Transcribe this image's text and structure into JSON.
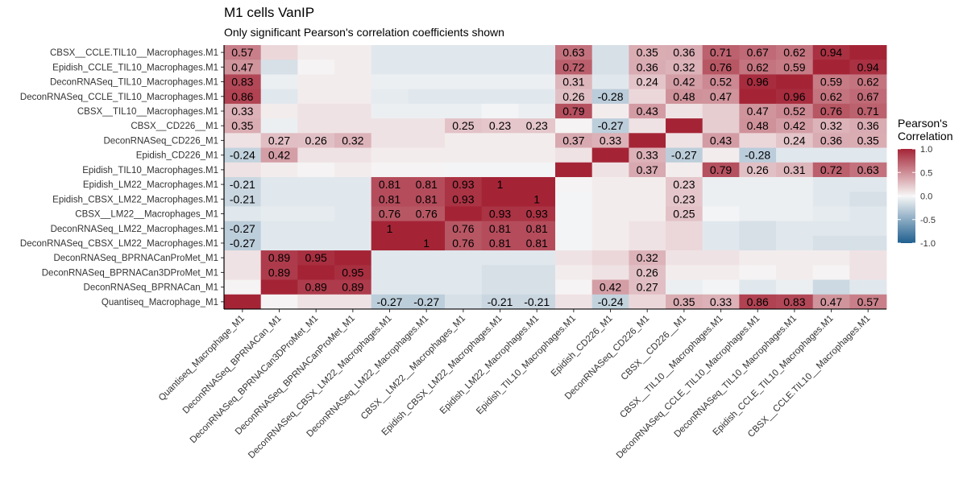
{
  "chart_data": {
    "type": "heatmap",
    "title": "M1 cells VanIP",
    "subtitle": "Only significant Pearson's correlation coefficients shown",
    "x_labels": [
      "Quantiseq_Macrophage_M1",
      "DeconRNASeq_BPRNACan_M1",
      "DeconRNASeq_BPRNACan3DProMet_M1",
      "DeconRNASeq_BPRNACanProMet_M1",
      "DeconRNASeq_CBSX_LM22_Macrophages.M1",
      "DeconRNASeq_LM22_Macrophages.M1",
      "CBSX__LM22__Macrophages_M1",
      "Epidish_CBSX_LM22_Macrophages.M1",
      "Epidish_LM22_Macrophages.M1",
      "Epidish_TIL10_Macrophages.M1",
      "Epidish_CD226_M1",
      "DeconRNASeq_CD226_M1",
      "CBSX__CD226__M1",
      "CBSX__TIL10__Macrophages.M1",
      "DeconRNASeq_CCLE_TIL10_Macrophages.M1",
      "DeconRNASeq_TIL10_Macrophages.M1",
      "Epidish_CCLE_TIL10_Macrophages.M1",
      "CBSX__CCLE.TIL10__Macrophages.M1"
    ],
    "y_labels": [
      "CBSX__CCLE.TIL10__Macrophages.M1",
      "Epidish_CCLE_TIL10_Macrophages.M1",
      "DeconRNASeq_TIL10_Macrophages.M1",
      "DeconRNASeq_CCLE_TIL10_Macrophages.M1",
      "CBSX__TIL10__Macrophages.M1",
      "CBSX__CD226__M1",
      "DeconRNASeq_CD226_M1",
      "Epidish_CD226_M1",
      "Epidish_TIL10_Macrophages.M1",
      "Epidish_LM22_Macrophages.M1",
      "Epidish_CBSX_LM22_Macrophages.M1",
      "CBSX__LM22__Macrophages_M1",
      "DeconRNASeq_LM22_Macrophages.M1",
      "DeconRNASeq_CBSX_LM22_Macrophages.M1",
      "DeconRNASeq_BPRNACanProMet_M1",
      "DeconRNASeq_BPRNACan3DProMet_M1",
      "DeconRNASeq_BPRNACan_M1",
      "Quantiseq_Macrophage_M1"
    ],
    "values": [
      [
        0.57,
        0.15,
        0.05,
        0.05,
        -0.1,
        -0.1,
        -0.1,
        -0.1,
        -0.1,
        0.63,
        -0.15,
        0.35,
        0.36,
        0.71,
        0.67,
        0.62,
        0.94,
        1
      ],
      [
        0.47,
        -0.15,
        0.02,
        0.05,
        -0.1,
        -0.1,
        -0.1,
        -0.1,
        -0.1,
        0.72,
        -0.15,
        0.36,
        0.32,
        0.76,
        0.62,
        0.59,
        1,
        0.94
      ],
      [
        0.83,
        -0.05,
        0.05,
        0.05,
        -0.05,
        -0.05,
        -0.05,
        -0.05,
        -0.05,
        0.31,
        -0.1,
        0.24,
        0.42,
        0.52,
        0.96,
        1,
        0.59,
        0.62
      ],
      [
        0.86,
        -0.1,
        0.05,
        0.05,
        -0.08,
        -0.1,
        -0.1,
        -0.1,
        -0.1,
        0.26,
        -0.28,
        0.15,
        0.48,
        0.47,
        1,
        0.96,
        0.62,
        0.67
      ],
      [
        0.33,
        0.05,
        0.1,
        0.1,
        -0.05,
        -0.05,
        -0.05,
        -0.02,
        -0.05,
        0.79,
        0.05,
        0.43,
        0.1,
        0.2,
        0.47,
        0.52,
        0.76,
        0.71
      ],
      [
        0.35,
        -0.05,
        0.1,
        0.1,
        0.1,
        0.1,
        0.25,
        0.23,
        0.23,
        0.02,
        -0.27,
        0.1,
        1,
        0.2,
        0.48,
        0.42,
        0.32,
        0.36
      ],
      [
        0.1,
        0.27,
        0.26,
        0.32,
        0.1,
        0.1,
        0.05,
        0.05,
        0.05,
        0.37,
        0.33,
        1,
        0.1,
        0.43,
        0.15,
        0.24,
        0.36,
        0.35
      ],
      [
        -0.24,
        0.42,
        0.1,
        0.1,
        0.05,
        0.05,
        0.05,
        0.05,
        0.05,
        0.1,
        1,
        0.33,
        -0.27,
        0.05,
        -0.28,
        -0.1,
        -0.1,
        -0.1
      ],
      [
        0.1,
        0.05,
        0.02,
        0.05,
        0.02,
        0.02,
        -0.02,
        -0.02,
        -0.02,
        1,
        0.1,
        0.37,
        0.05,
        0.79,
        0.26,
        0.31,
        0.72,
        0.63
      ],
      [
        -0.21,
        -0.1,
        -0.1,
        -0.1,
        0.81,
        0.81,
        0.93,
        1,
        1,
        0.02,
        0.05,
        0.05,
        0.23,
        -0.05,
        -0.05,
        -0.05,
        -0.1,
        -0.1
      ],
      [
        -0.21,
        -0.1,
        -0.1,
        -0.1,
        0.81,
        0.81,
        0.93,
        1,
        1,
        -0.02,
        0.05,
        0.05,
        0.23,
        -0.05,
        -0.05,
        -0.05,
        -0.1,
        -0.15
      ],
      [
        -0.1,
        -0.08,
        -0.08,
        -0.1,
        0.76,
        0.76,
        1,
        0.93,
        0.93,
        -0.02,
        0.05,
        0.05,
        0.25,
        -0.02,
        -0.05,
        -0.05,
        -0.08,
        -0.1
      ],
      [
        -0.27,
        -0.1,
        -0.1,
        -0.1,
        1,
        1,
        0.76,
        0.81,
        0.81,
        -0.02,
        0.05,
        0.1,
        0.15,
        -0.1,
        -0.15,
        -0.1,
        -0.1,
        -0.1
      ],
      [
        -0.27,
        -0.1,
        -0.1,
        -0.1,
        1,
        1,
        0.76,
        0.81,
        0.81,
        -0.02,
        0.05,
        0.1,
        0.15,
        -0.1,
        -0.15,
        -0.1,
        -0.15,
        -0.15
      ],
      [
        0.1,
        0.89,
        0.95,
        1,
        -0.1,
        -0.1,
        -0.1,
        -0.1,
        -0.1,
        0.1,
        0.15,
        0.32,
        0.1,
        0.1,
        0.05,
        0.05,
        0.05,
        0.1
      ],
      [
        0.1,
        0.89,
        1,
        0.95,
        -0.1,
        -0.1,
        -0.1,
        -0.15,
        -0.15,
        0.05,
        0.1,
        0.26,
        0.05,
        0.05,
        0.02,
        0.05,
        0.02,
        0.1
      ],
      [
        0.02,
        1,
        0.89,
        0.89,
        -0.1,
        -0.1,
        -0.1,
        -0.15,
        -0.15,
        0.02,
        0.42,
        0.27,
        -0.05,
        -0.02,
        -0.1,
        -0.05,
        -0.2,
        -0.1
      ],
      [
        1,
        0.02,
        0.1,
        0.1,
        -0.27,
        -0.27,
        -0.15,
        -0.21,
        -0.21,
        0.1,
        -0.24,
        0.15,
        0.35,
        0.33,
        0.86,
        0.83,
        0.47,
        0.57
      ]
    ],
    "shown_labels": [
      [
        0.57,
        null,
        null,
        null,
        null,
        null,
        null,
        null,
        null,
        0.63,
        null,
        0.35,
        0.36,
        0.71,
        0.67,
        0.62,
        0.94,
        null
      ],
      [
        0.47,
        null,
        null,
        null,
        null,
        null,
        null,
        null,
        null,
        0.72,
        null,
        0.36,
        0.32,
        0.76,
        0.62,
        0.59,
        null,
        0.94
      ],
      [
        0.83,
        null,
        null,
        null,
        null,
        null,
        null,
        null,
        null,
        0.31,
        null,
        0.24,
        0.42,
        0.52,
        0.96,
        null,
        0.59,
        0.62
      ],
      [
        0.86,
        null,
        null,
        null,
        null,
        null,
        null,
        null,
        null,
        0.26,
        -0.28,
        null,
        0.48,
        0.47,
        null,
        0.96,
        0.62,
        0.67
      ],
      [
        0.33,
        null,
        null,
        null,
        null,
        null,
        null,
        null,
        null,
        0.79,
        null,
        0.43,
        null,
        null,
        0.47,
        0.52,
        0.76,
        0.71
      ],
      [
        0.35,
        null,
        null,
        null,
        null,
        null,
        0.25,
        0.23,
        0.23,
        null,
        -0.27,
        null,
        null,
        null,
        0.48,
        0.42,
        0.32,
        0.36
      ],
      [
        null,
        0.27,
        0.26,
        0.32,
        null,
        null,
        null,
        null,
        null,
        0.37,
        0.33,
        null,
        null,
        0.43,
        null,
        0.24,
        0.36,
        0.35
      ],
      [
        -0.24,
        0.42,
        null,
        null,
        null,
        null,
        null,
        null,
        null,
        null,
        null,
        0.33,
        -0.27,
        null,
        -0.28,
        null,
        null,
        null
      ],
      [
        null,
        null,
        null,
        null,
        null,
        null,
        null,
        null,
        null,
        null,
        null,
        0.37,
        null,
        0.79,
        0.26,
        0.31,
        0.72,
        0.63
      ],
      [
        -0.21,
        null,
        null,
        null,
        0.81,
        0.81,
        0.93,
        1,
        null,
        null,
        null,
        null,
        0.23,
        null,
        null,
        null,
        null,
        null
      ],
      [
        -0.21,
        null,
        null,
        null,
        0.81,
        0.81,
        0.93,
        null,
        1,
        null,
        null,
        null,
        0.23,
        null,
        null,
        null,
        null,
        null
      ],
      [
        null,
        null,
        null,
        null,
        0.76,
        0.76,
        null,
        0.93,
        0.93,
        null,
        null,
        null,
        0.25,
        null,
        null,
        null,
        null,
        null
      ],
      [
        -0.27,
        null,
        null,
        null,
        1,
        null,
        0.76,
        0.81,
        0.81,
        null,
        null,
        null,
        null,
        null,
        null,
        null,
        null,
        null
      ],
      [
        -0.27,
        null,
        null,
        null,
        null,
        1,
        0.76,
        0.81,
        0.81,
        null,
        null,
        null,
        null,
        null,
        null,
        null,
        null,
        null
      ],
      [
        null,
        0.89,
        0.95,
        null,
        null,
        null,
        null,
        null,
        null,
        null,
        null,
        0.32,
        null,
        null,
        null,
        null,
        null,
        null
      ],
      [
        null,
        0.89,
        null,
        0.95,
        null,
        null,
        null,
        null,
        null,
        null,
        null,
        0.26,
        null,
        null,
        null,
        null,
        null,
        null
      ],
      [
        null,
        null,
        0.89,
        0.89,
        null,
        null,
        null,
        null,
        null,
        null,
        0.42,
        0.27,
        null,
        null,
        null,
        null,
        null,
        null
      ],
      [
        null,
        null,
        null,
        null,
        -0.27,
        -0.27,
        null,
        -0.21,
        -0.21,
        null,
        -0.24,
        null,
        0.35,
        0.33,
        0.86,
        0.83,
        0.47,
        0.57
      ]
    ],
    "legend": {
      "title_lines": [
        "Pearson's",
        "Correlation"
      ],
      "ticks": [
        "1.0",
        "0.5",
        "0.0",
        "-0.5",
        "-1.0"
      ],
      "range": [
        -1,
        1
      ],
      "placement": "right"
    },
    "colors": {
      "low": "#1f5f8f",
      "mid": "#f7f7f7",
      "high": "#a42436"
    },
    "grid": false
  }
}
